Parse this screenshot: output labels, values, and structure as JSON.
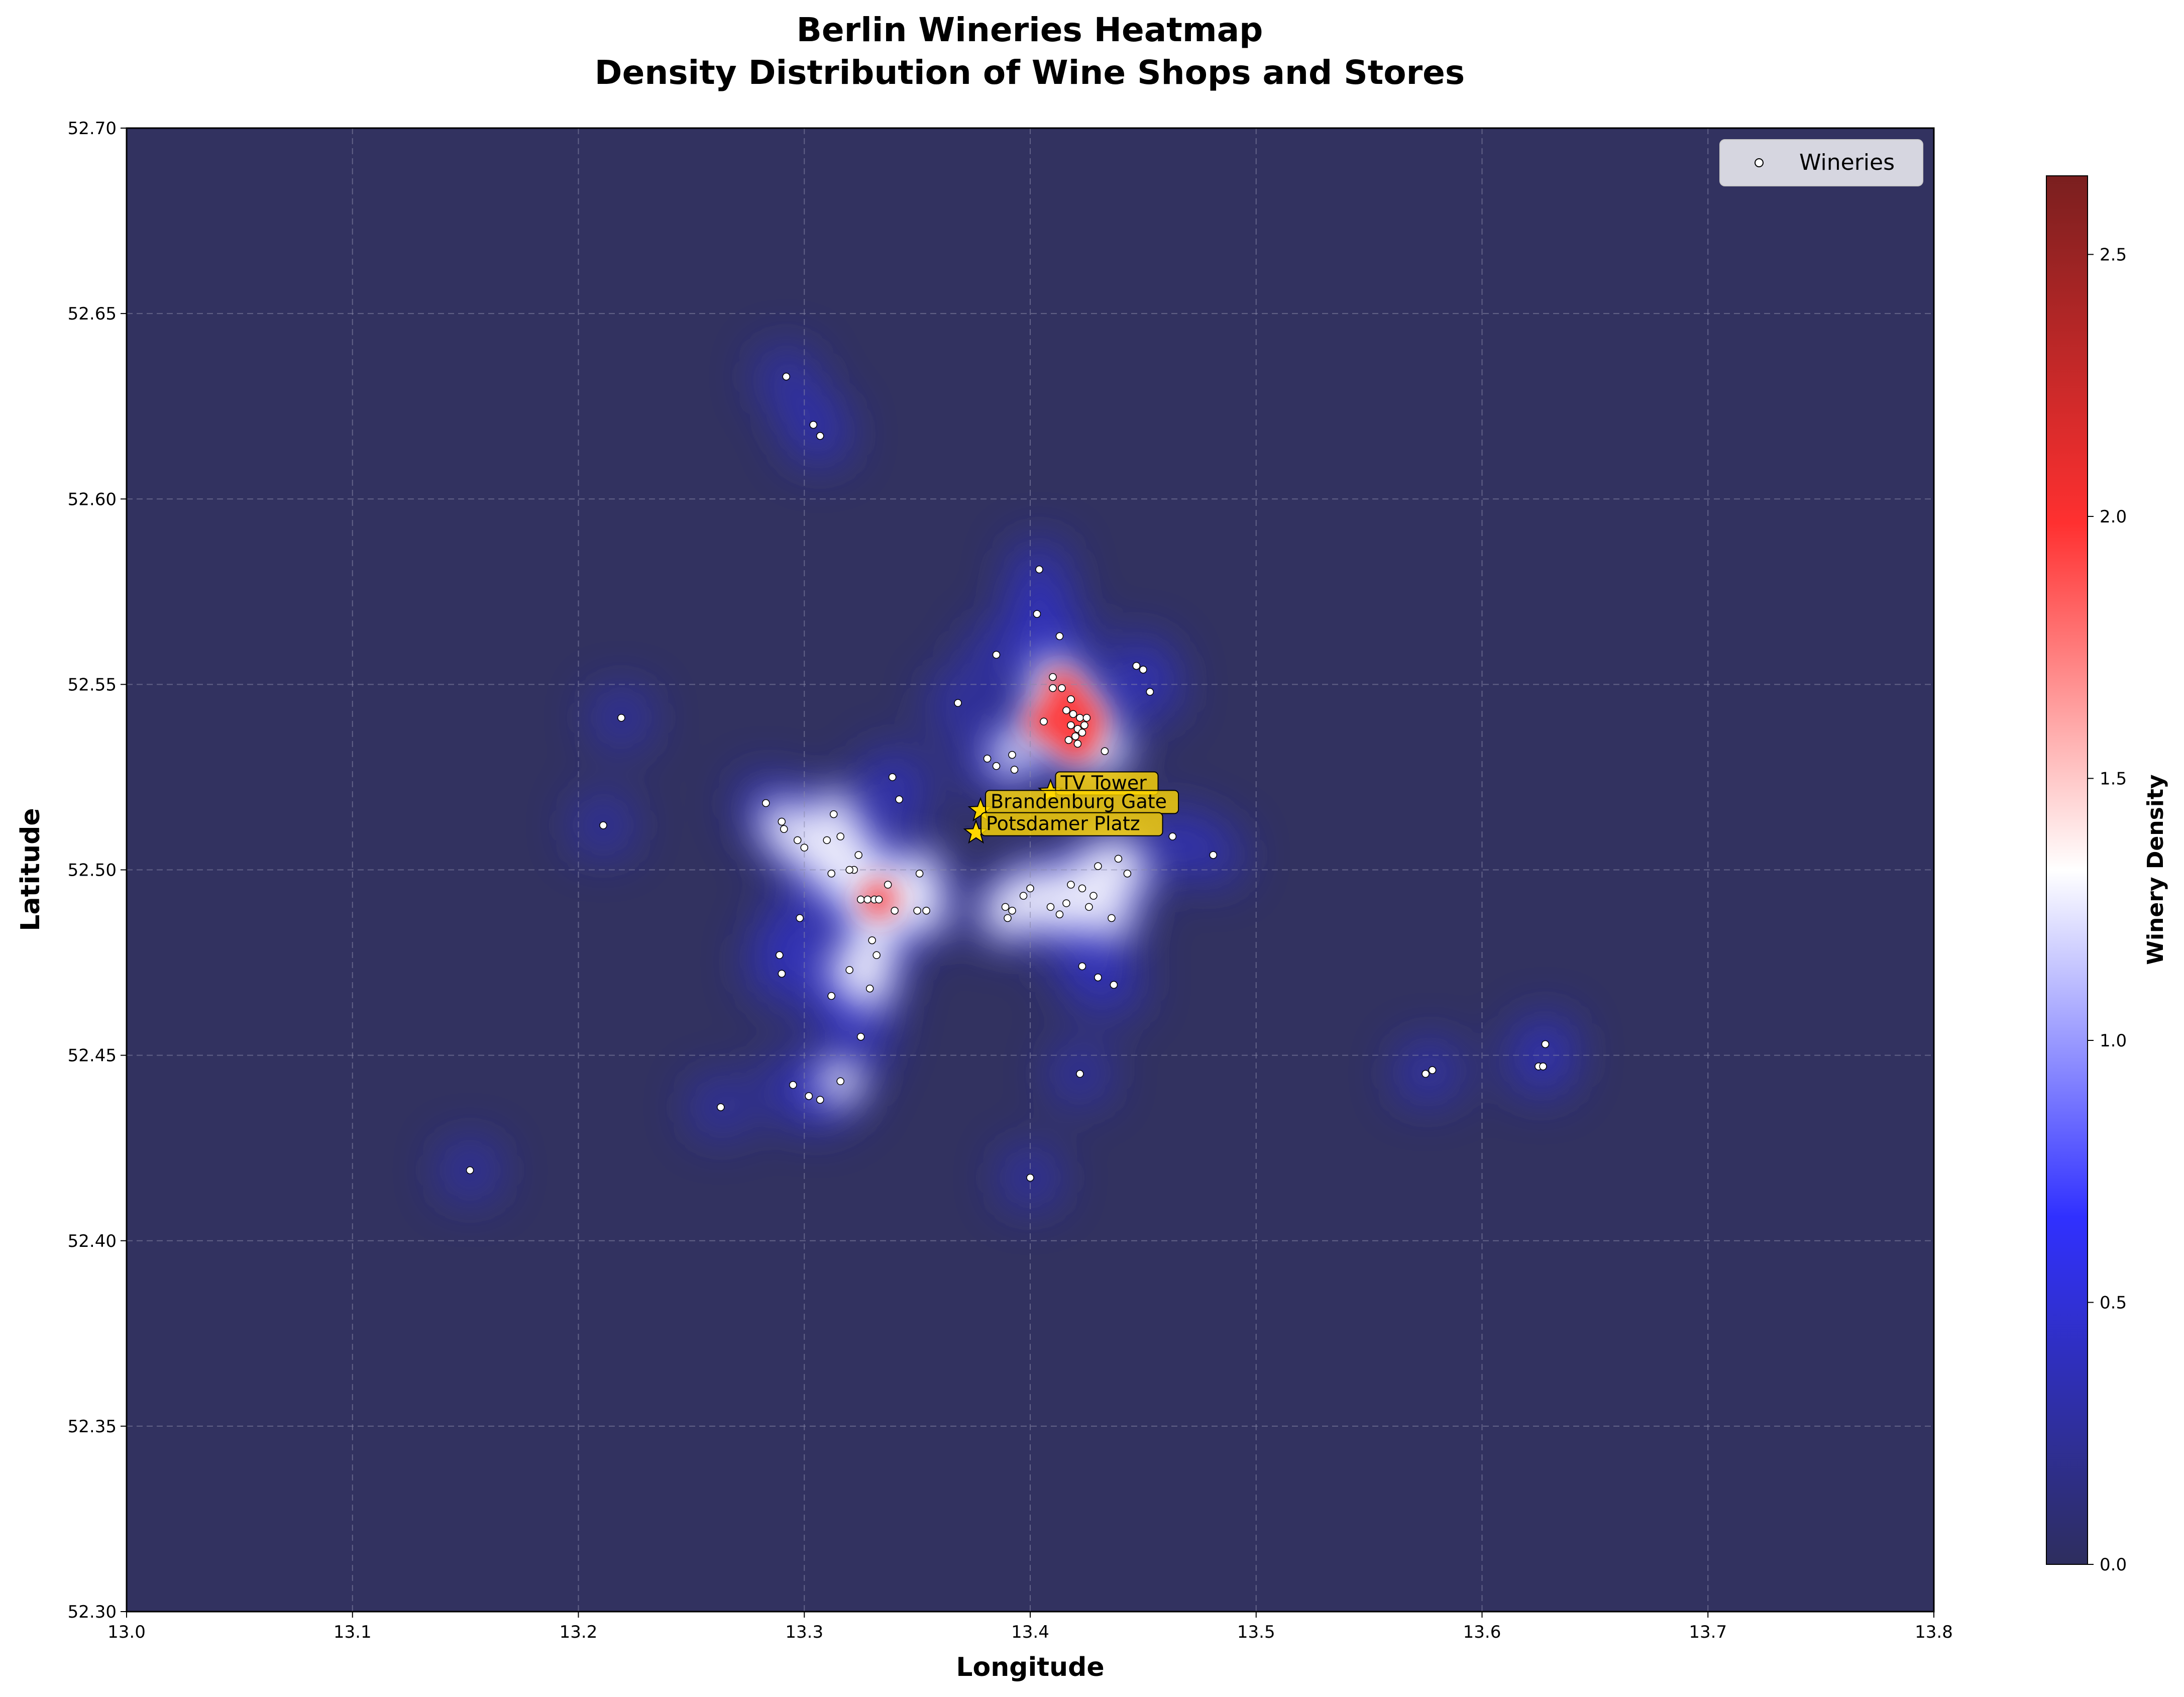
{
  "chart_data": {
    "type": "heatmap",
    "title": "Berlin Wineries Heatmap",
    "subtitle": "Density Distribution of Wine Shops and Stores",
    "xlabel": "Longitude",
    "ylabel": "Latitude",
    "xlim": [
      13.0,
      13.8
    ],
    "ylim": [
      52.3,
      52.7
    ],
    "x_ticks": [
      "13.0",
      "13.1",
      "13.2",
      "13.3",
      "13.4",
      "13.5",
      "13.6",
      "13.7",
      "13.8"
    ],
    "y_ticks": [
      "52.30",
      "52.35",
      "52.40",
      "52.45",
      "52.50",
      "52.55",
      "52.60",
      "52.65",
      "52.70"
    ],
    "grid": true,
    "legend": {
      "placement": "top-right",
      "entries": [
        "Wineries"
      ]
    },
    "colorbar": {
      "label": "Winery Density",
      "range": [
        0.0,
        2.65
      ],
      "ticks": [
        "0.0",
        "0.5",
        "1.0",
        "1.5",
        "2.0",
        "2.5"
      ],
      "colors": [
        "#2e2e5e",
        "#3030ff",
        "#ffffff",
        "#ff3030",
        "#7a1f1f"
      ]
    },
    "point_color": "#ffffff",
    "background_color": "#323260",
    "landmarks": [
      {
        "name": "TV Tower",
        "lon": 13.409,
        "lat": 52.521
      },
      {
        "name": "Brandenburg Gate",
        "lon": 13.378,
        "lat": 52.516
      },
      {
        "name": "Potsdamer Platz",
        "lon": 13.376,
        "lat": 52.51
      }
    ],
    "landmark_color": "#ffd700",
    "wineries": [
      [
        13.292,
        52.633
      ],
      [
        13.304,
        52.62
      ],
      [
        13.307,
        52.617
      ],
      [
        13.404,
        52.581
      ],
      [
        13.403,
        52.569
      ],
      [
        13.413,
        52.563
      ],
      [
        13.385,
        52.558
      ],
      [
        13.447,
        52.555
      ],
      [
        13.45,
        52.554
      ],
      [
        13.453,
        52.548
      ],
      [
        13.368,
        52.545
      ],
      [
        13.41,
        52.552
      ],
      [
        13.41,
        52.549
      ],
      [
        13.414,
        52.549
      ],
      [
        13.418,
        52.546
      ],
      [
        13.416,
        52.543
      ],
      [
        13.419,
        52.542
      ],
      [
        13.422,
        52.541
      ],
      [
        13.425,
        52.541
      ],
      [
        13.418,
        52.539
      ],
      [
        13.421,
        52.538
      ],
      [
        13.424,
        52.539
      ],
      [
        13.42,
        52.536
      ],
      [
        13.423,
        52.537
      ],
      [
        13.417,
        52.535
      ],
      [
        13.421,
        52.534
      ],
      [
        13.406,
        52.54
      ],
      [
        13.433,
        52.532
      ],
      [
        13.219,
        52.541
      ],
      [
        13.381,
        52.53
      ],
      [
        13.385,
        52.528
      ],
      [
        13.392,
        52.531
      ],
      [
        13.393,
        52.527
      ],
      [
        13.339,
        52.525
      ],
      [
        13.342,
        52.519
      ],
      [
        13.283,
        52.518
      ],
      [
        13.313,
        52.515
      ],
      [
        13.29,
        52.513
      ],
      [
        13.291,
        52.511
      ],
      [
        13.211,
        52.512
      ],
      [
        13.316,
        52.509
      ],
      [
        13.31,
        52.508
      ],
      [
        13.297,
        52.508
      ],
      [
        13.3,
        52.506
      ],
      [
        13.324,
        52.504
      ],
      [
        13.322,
        52.5
      ],
      [
        13.32,
        52.5
      ],
      [
        13.312,
        52.499
      ],
      [
        13.351,
        52.499
      ],
      [
        13.337,
        52.496
      ],
      [
        13.325,
        52.492
      ],
      [
        13.328,
        52.492
      ],
      [
        13.331,
        52.492
      ],
      [
        13.333,
        52.492
      ],
      [
        13.34,
        52.489
      ],
      [
        13.35,
        52.489
      ],
      [
        13.354,
        52.489
      ],
      [
        13.298,
        52.487
      ],
      [
        13.33,
        52.481
      ],
      [
        13.332,
        52.477
      ],
      [
        13.289,
        52.477
      ],
      [
        13.32,
        52.473
      ],
      [
        13.29,
        52.472
      ],
      [
        13.329,
        52.468
      ],
      [
        13.312,
        52.466
      ],
      [
        13.325,
        52.455
      ],
      [
        13.463,
        52.509
      ],
      [
        13.481,
        52.504
      ],
      [
        13.439,
        52.503
      ],
      [
        13.43,
        52.501
      ],
      [
        13.443,
        52.499
      ],
      [
        13.418,
        52.496
      ],
      [
        13.423,
        52.495
      ],
      [
        13.4,
        52.495
      ],
      [
        13.397,
        52.493
      ],
      [
        13.428,
        52.493
      ],
      [
        13.416,
        52.491
      ],
      [
        13.409,
        52.49
      ],
      [
        13.426,
        52.49
      ],
      [
        13.389,
        52.49
      ],
      [
        13.392,
        52.489
      ],
      [
        13.413,
        52.488
      ],
      [
        13.39,
        52.487
      ],
      [
        13.436,
        52.487
      ],
      [
        13.423,
        52.474
      ],
      [
        13.43,
        52.471
      ],
      [
        13.437,
        52.469
      ],
      [
        13.422,
        52.445
      ],
      [
        13.316,
        52.443
      ],
      [
        13.295,
        52.442
      ],
      [
        13.302,
        52.439
      ],
      [
        13.307,
        52.438
      ],
      [
        13.263,
        52.436
      ],
      [
        13.4,
        52.417
      ],
      [
        13.152,
        52.419
      ],
      [
        13.575,
        52.445
      ],
      [
        13.578,
        52.446
      ],
      [
        13.628,
        52.453
      ],
      [
        13.625,
        52.447
      ],
      [
        13.627,
        52.447
      ]
    ]
  }
}
